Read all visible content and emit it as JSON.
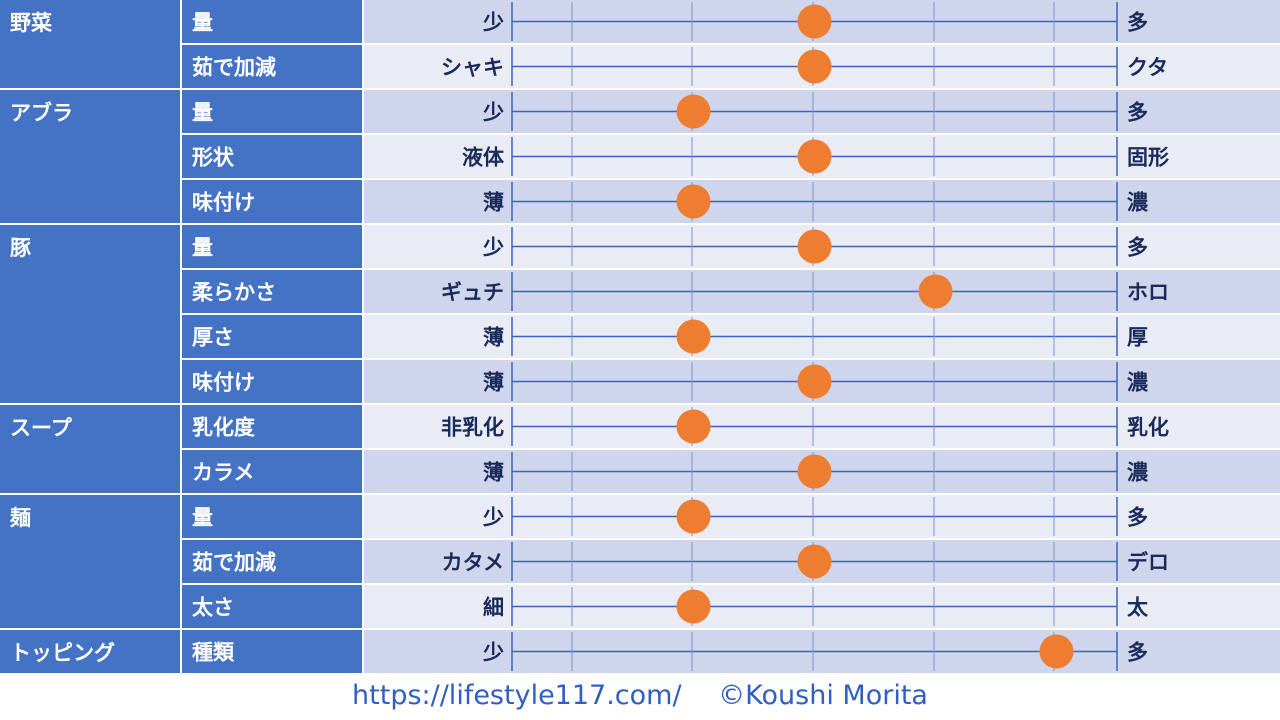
{
  "chart_data": {
    "type": "scatter",
    "scale_steps": 5,
    "groups": [
      {
        "name": "野菜",
        "rows": [
          {
            "attr": "量",
            "left": "少",
            "right": "多",
            "value": 2.5
          },
          {
            "attr": "茹で加減",
            "left": "シャキ",
            "right": "クタ",
            "value": 2.5
          }
        ]
      },
      {
        "name": "アブラ",
        "rows": [
          {
            "attr": "量",
            "left": "少",
            "right": "多",
            "value": 1.5
          },
          {
            "attr": "形状",
            "left": "液体",
            "right": "固形",
            "value": 2.5
          },
          {
            "attr": "味付け",
            "left": "薄",
            "right": "濃",
            "value": 1.5
          }
        ]
      },
      {
        "name": "豚",
        "rows": [
          {
            "attr": "量",
            "left": "少",
            "right": "多",
            "value": 2.5
          },
          {
            "attr": "柔らかさ",
            "left": "ギュチ",
            "right": "ホロ",
            "value": 3.5
          },
          {
            "attr": "厚さ",
            "left": "薄",
            "right": "厚",
            "value": 1.5
          },
          {
            "attr": "味付け",
            "left": "薄",
            "right": "濃",
            "value": 2.5
          }
        ]
      },
      {
        "name": "スープ",
        "rows": [
          {
            "attr": "乳化度",
            "left": "非乳化",
            "right": "乳化",
            "value": 1.5
          },
          {
            "attr": "カラメ",
            "left": "薄",
            "right": "濃",
            "value": 2.5
          }
        ]
      },
      {
        "name": "麺",
        "rows": [
          {
            "attr": "量",
            "left": "少",
            "right": "多",
            "value": 1.5
          },
          {
            "attr": "茹で加減",
            "left": "カタメ",
            "right": "デロ",
            "value": 2.5
          },
          {
            "attr": "太さ",
            "left": "細",
            "right": "太",
            "value": 1.5
          }
        ]
      },
      {
        "name": "トッピング",
        "rows": [
          {
            "attr": "種類",
            "left": "少",
            "right": "多",
            "value": 4.5
          }
        ]
      }
    ]
  },
  "colors": {
    "category_bg": "#4472c4",
    "row_bg_a": "#cfd5ea",
    "row_bg_b": "#e9ebf5",
    "axis_line": "#3d63c0",
    "marker": "#ed7d31",
    "footer_text": "#2f5fc4"
  },
  "footer": {
    "url": "https://lifestyle117.com/",
    "copyright": "©Koushi Morita"
  }
}
